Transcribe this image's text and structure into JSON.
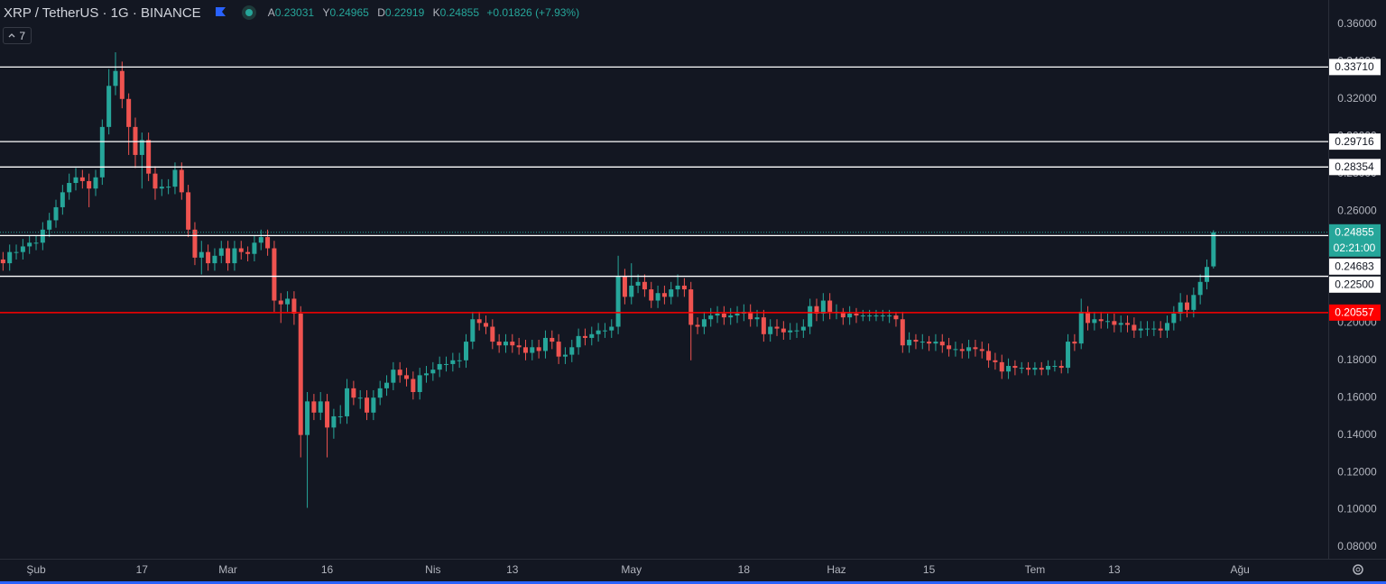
{
  "header": {
    "title": "XRP / TetherUS · 1G · BINANCE",
    "ohlc_keys": [
      "A",
      "Y",
      "D",
      "K"
    ],
    "change": "+0.01826 (+7.93%)",
    "interval_badge": "7"
  },
  "chart_data": {
    "type": "candlestick",
    "up_color": "#26a69a",
    "down_color": "#ef5350",
    "open": [
      0.234,
      0.232,
      0.238,
      0.238,
      0.241,
      0.243,
      0.243,
      0.25,
      0.255,
      0.262,
      0.27,
      0.275,
      0.278,
      0.276,
      0.272,
      0.278,
      0.305,
      0.327,
      0.335,
      0.32,
      0.305,
      0.29,
      0.298,
      0.28,
      0.272,
      0.273,
      0.273,
      0.282,
      0.27,
      0.25,
      0.235,
      0.238,
      0.232,
      0.236,
      0.24,
      0.232,
      0.24,
      0.238,
      0.237,
      0.243,
      0.246,
      0.24,
      0.212,
      0.21,
      0.213,
      0.205,
      0.14,
      0.158,
      0.152,
      0.158,
      0.144,
      0.15,
      0.15,
      0.165,
      0.16,
      0.16,
      0.152,
      0.16,
      0.165,
      0.168,
      0.175,
      0.172,
      0.17,
      0.163,
      0.172,
      0.173,
      0.175,
      0.178,
      0.178,
      0.18,
      0.18,
      0.19,
      0.202,
      0.2,
      0.198,
      0.19,
      0.188,
      0.19,
      0.188,
      0.187,
      0.184,
      0.187,
      0.185,
      0.192,
      0.19,
      0.182,
      0.183,
      0.187,
      0.193,
      0.192,
      0.194,
      0.196,
      0.196,
      0.198,
      0.225,
      0.214,
      0.22,
      0.222,
      0.218,
      0.212,
      0.216,
      0.214,
      0.218,
      0.22,
      0.218,
      0.199,
      0.198,
      0.202,
      0.204,
      0.205,
      0.203,
      0.204,
      0.205,
      0.206,
      0.202,
      0.203,
      0.194,
      0.198,
      0.197,
      0.195,
      0.196,
      0.196,
      0.198,
      0.209,
      0.205,
      0.212,
      0.206,
      0.206,
      0.203,
      0.205,
      0.204,
      0.204,
      0.204,
      0.204,
      0.204,
      0.204,
      0.202,
      0.188,
      0.191,
      0.19,
      0.19,
      0.189,
      0.19,
      0.188,
      0.186,
      0.186,
      0.185,
      0.187,
      0.186,
      0.185,
      0.18,
      0.179,
      0.174,
      0.177,
      0.176,
      0.176,
      0.175,
      0.176,
      0.175,
      0.177,
      0.177,
      0.176,
      0.19,
      0.189,
      0.206,
      0.2,
      0.202,
      0.201,
      0.201,
      0.199,
      0.2,
      0.199,
      0.196,
      0.197,
      0.197,
      0.197,
      0.196,
      0.2,
      0.205,
      0.211,
      0.207,
      0.215,
      0.222,
      0.23031
    ],
    "high": [
      0.238,
      0.242,
      0.242,
      0.245,
      0.247,
      0.247,
      0.254,
      0.259,
      0.266,
      0.274,
      0.28,
      0.283,
      0.282,
      0.28,
      0.282,
      0.309,
      0.336,
      0.345,
      0.34,
      0.323,
      0.31,
      0.302,
      0.302,
      0.284,
      0.277,
      0.277,
      0.286,
      0.286,
      0.274,
      0.254,
      0.244,
      0.242,
      0.24,
      0.244,
      0.244,
      0.244,
      0.244,
      0.241,
      0.247,
      0.25,
      0.25,
      0.244,
      0.216,
      0.217,
      0.217,
      0.209,
      0.163,
      0.162,
      0.163,
      0.162,
      0.154,
      0.156,
      0.17,
      0.169,
      0.164,
      0.164,
      0.164,
      0.169,
      0.172,
      0.179,
      0.179,
      0.176,
      0.174,
      0.176,
      0.177,
      0.179,
      0.182,
      0.182,
      0.184,
      0.184,
      0.194,
      0.206,
      0.206,
      0.204,
      0.202,
      0.194,
      0.194,
      0.194,
      0.192,
      0.191,
      0.191,
      0.191,
      0.196,
      0.196,
      0.194,
      0.187,
      0.191,
      0.197,
      0.197,
      0.198,
      0.2,
      0.2,
      0.202,
      0.236,
      0.229,
      0.232,
      0.226,
      0.226,
      0.222,
      0.22,
      0.22,
      0.222,
      0.226,
      0.224,
      0.222,
      0.203,
      0.206,
      0.208,
      0.209,
      0.209,
      0.208,
      0.209,
      0.21,
      0.21,
      0.207,
      0.207,
      0.202,
      0.202,
      0.201,
      0.2,
      0.2,
      0.202,
      0.213,
      0.213,
      0.216,
      0.216,
      0.21,
      0.208,
      0.209,
      0.208,
      0.207,
      0.207,
      0.207,
      0.207,
      0.207,
      0.206,
      0.206,
      0.195,
      0.194,
      0.194,
      0.193,
      0.194,
      0.194,
      0.192,
      0.19,
      0.189,
      0.191,
      0.191,
      0.19,
      0.189,
      0.184,
      0.183,
      0.181,
      0.18,
      0.179,
      0.179,
      0.179,
      0.179,
      0.18,
      0.18,
      0.18,
      0.194,
      0.194,
      0.213,
      0.209,
      0.206,
      0.206,
      0.205,
      0.205,
      0.204,
      0.204,
      0.203,
      0.201,
      0.201,
      0.201,
      0.201,
      0.204,
      0.209,
      0.216,
      0.215,
      0.219,
      0.226,
      0.234,
      0.24965
    ],
    "low": [
      0.228,
      0.228,
      0.234,
      0.234,
      0.237,
      0.239,
      0.239,
      0.246,
      0.251,
      0.258,
      0.266,
      0.271,
      0.272,
      0.262,
      0.268,
      0.274,
      0.301,
      0.322,
      0.315,
      0.29,
      0.283,
      0.272,
      0.276,
      0.266,
      0.268,
      0.269,
      0.269,
      0.266,
      0.246,
      0.231,
      0.226,
      0.228,
      0.228,
      0.232,
      0.228,
      0.228,
      0.234,
      0.233,
      0.233,
      0.239,
      0.236,
      0.206,
      0.2,
      0.206,
      0.199,
      0.128,
      0.101,
      0.148,
      0.148,
      0.128,
      0.138,
      0.146,
      0.146,
      0.156,
      0.154,
      0.148,
      0.148,
      0.156,
      0.161,
      0.164,
      0.168,
      0.166,
      0.159,
      0.159,
      0.168,
      0.169,
      0.171,
      0.174,
      0.174,
      0.176,
      0.176,
      0.186,
      0.196,
      0.194,
      0.186,
      0.184,
      0.184,
      0.184,
      0.183,
      0.18,
      0.18,
      0.181,
      0.181,
      0.186,
      0.178,
      0.178,
      0.179,
      0.183,
      0.188,
      0.188,
      0.19,
      0.192,
      0.192,
      0.194,
      0.21,
      0.21,
      0.216,
      0.214,
      0.208,
      0.208,
      0.21,
      0.21,
      0.214,
      0.214,
      0.18,
      0.194,
      0.194,
      0.198,
      0.2,
      0.199,
      0.199,
      0.2,
      0.201,
      0.198,
      0.198,
      0.19,
      0.19,
      0.193,
      0.191,
      0.191,
      0.192,
      0.192,
      0.194,
      0.201,
      0.201,
      0.202,
      0.202,
      0.199,
      0.199,
      0.2,
      0.201,
      0.201,
      0.201,
      0.201,
      0.2,
      0.198,
      0.184,
      0.184,
      0.186,
      0.186,
      0.185,
      0.185,
      0.184,
      0.182,
      0.182,
      0.181,
      0.181,
      0.182,
      0.181,
      0.176,
      0.175,
      0.17,
      0.17,
      0.172,
      0.173,
      0.172,
      0.172,
      0.172,
      0.172,
      0.174,
      0.173,
      0.173,
      0.185,
      0.186,
      0.196,
      0.196,
      0.197,
      0.197,
      0.195,
      0.195,
      0.195,
      0.192,
      0.192,
      0.193,
      0.193,
      0.192,
      0.192,
      0.196,
      0.201,
      0.203,
      0.203,
      0.21,
      0.218,
      0.22919
    ],
    "close": [
      0.232,
      0.238,
      0.238,
      0.241,
      0.243,
      0.243,
      0.25,
      0.255,
      0.262,
      0.27,
      0.275,
      0.278,
      0.276,
      0.272,
      0.278,
      0.305,
      0.327,
      0.335,
      0.32,
      0.305,
      0.29,
      0.298,
      0.28,
      0.272,
      0.273,
      0.273,
      0.282,
      0.27,
      0.25,
      0.235,
      0.238,
      0.232,
      0.236,
      0.24,
      0.232,
      0.24,
      0.238,
      0.237,
      0.243,
      0.246,
      0.24,
      0.212,
      0.21,
      0.213,
      0.205,
      0.14,
      0.158,
      0.152,
      0.158,
      0.144,
      0.15,
      0.15,
      0.165,
      0.16,
      0.16,
      0.152,
      0.16,
      0.165,
      0.168,
      0.175,
      0.172,
      0.17,
      0.163,
      0.172,
      0.173,
      0.175,
      0.178,
      0.178,
      0.18,
      0.18,
      0.19,
      0.202,
      0.2,
      0.198,
      0.19,
      0.188,
      0.19,
      0.188,
      0.187,
      0.184,
      0.187,
      0.185,
      0.192,
      0.19,
      0.182,
      0.183,
      0.187,
      0.193,
      0.192,
      0.194,
      0.196,
      0.196,
      0.198,
      0.225,
      0.214,
      0.22,
      0.222,
      0.218,
      0.212,
      0.216,
      0.214,
      0.218,
      0.22,
      0.218,
      0.199,
      0.198,
      0.202,
      0.204,
      0.205,
      0.203,
      0.204,
      0.205,
      0.206,
      0.202,
      0.203,
      0.194,
      0.198,
      0.197,
      0.195,
      0.196,
      0.196,
      0.198,
      0.209,
      0.205,
      0.212,
      0.206,
      0.206,
      0.203,
      0.205,
      0.204,
      0.204,
      0.204,
      0.204,
      0.204,
      0.204,
      0.202,
      0.188,
      0.191,
      0.19,
      0.19,
      0.189,
      0.19,
      0.188,
      0.186,
      0.186,
      0.185,
      0.187,
      0.186,
      0.185,
      0.18,
      0.179,
      0.174,
      0.177,
      0.176,
      0.176,
      0.175,
      0.176,
      0.175,
      0.177,
      0.177,
      0.176,
      0.19,
      0.189,
      0.206,
      0.2,
      0.202,
      0.201,
      0.201,
      0.199,
      0.2,
      0.199,
      0.196,
      0.197,
      0.197,
      0.197,
      0.196,
      0.2,
      0.205,
      0.211,
      0.207,
      0.215,
      0.222,
      0.23,
      0.24855
    ],
    "xlim": [
      -0.46,
      200.35
    ],
    "xticks": [
      {
        "value": 5,
        "label": "Şub"
      },
      {
        "value": 21,
        "label": "17"
      },
      {
        "value": 34,
        "label": "Mar"
      },
      {
        "value": 49,
        "label": "16"
      },
      {
        "value": 65,
        "label": "Nis"
      },
      {
        "value": 77,
        "label": "13"
      },
      {
        "value": 95,
        "label": "May"
      },
      {
        "value": 112,
        "label": "18"
      },
      {
        "value": 126,
        "label": "Haz"
      },
      {
        "value": 140,
        "label": "15"
      },
      {
        "value": 156,
        "label": "Tem"
      },
      {
        "value": 168,
        "label": "13"
      },
      {
        "value": 187,
        "label": "Ağu"
      }
    ],
    "ylim": [
      0.0737,
      0.373
    ],
    "yticks": [
      {
        "value": 0.08,
        "label": "0.08000"
      },
      {
        "value": 0.1,
        "label": "0.10000"
      },
      {
        "value": 0.12,
        "label": "0.12000"
      },
      {
        "value": 0.14,
        "label": "0.14000"
      },
      {
        "value": 0.16,
        "label": "0.16000"
      },
      {
        "value": 0.18,
        "label": "0.18000"
      },
      {
        "value": 0.2,
        "label": "0.20000"
      },
      {
        "value": 0.22,
        "label": "0.22000"
      },
      {
        "value": 0.24,
        "label": "0.24000"
      },
      {
        "value": 0.26,
        "label": "0.26000"
      },
      {
        "value": 0.28,
        "label": "0.28000"
      },
      {
        "value": 0.3,
        "label": "0.30000"
      },
      {
        "value": 0.32,
        "label": "0.32000"
      },
      {
        "value": 0.34,
        "label": "0.34000"
      },
      {
        "value": 0.36,
        "label": "0.36000"
      }
    ],
    "levels": [
      {
        "value": 0.3371,
        "label": "0.33710",
        "color": "#ffffff"
      },
      {
        "value": 0.29716,
        "label": "0.29716",
        "color": "#ffffff"
      },
      {
        "value": 0.28354,
        "label": "0.28354",
        "color": "#ffffff"
      },
      {
        "value": 0.24683,
        "label": "0.24683",
        "color": "#ffffff"
      },
      {
        "value": 0.225,
        "label": "0.22500",
        "color": "#ffffff"
      },
      {
        "value": 0.20557,
        "label": "0.20557",
        "color": "#ff0000"
      }
    ],
    "countdown": "02:21:00",
    "grid": false
  }
}
